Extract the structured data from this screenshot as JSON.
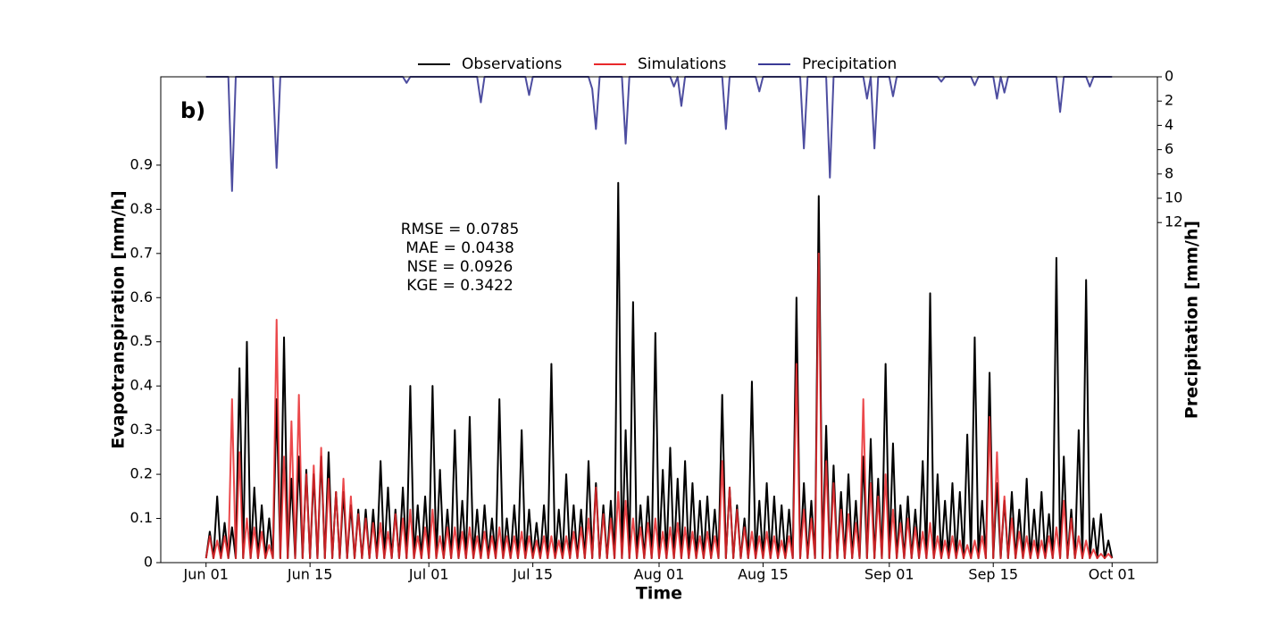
{
  "chart_data": {
    "type": "line",
    "panel_label": "b)",
    "xlabel": "Time",
    "ylabel": "Evapotranspiration [mm/h]",
    "y2label": "Precipitation [mm/h]",
    "annotations": [
      "RMSE = 0.0785",
      "MAE = 0.0438",
      "NSE = 0.0926",
      "KGE = 0.3422"
    ],
    "xlim": [
      -6.1,
      128.1
    ],
    "xticks": [
      {
        "value": 0,
        "label": "Jun 01"
      },
      {
        "value": 14,
        "label": "Jun 15"
      },
      {
        "value": 30,
        "label": "Jul 01"
      },
      {
        "value": 44,
        "label": "Jul 15"
      },
      {
        "value": 61,
        "label": "Aug 01"
      },
      {
        "value": 75,
        "label": "Aug 15"
      },
      {
        "value": 92,
        "label": "Sep 01"
      },
      {
        "value": 106,
        "label": "Sep 15"
      },
      {
        "value": 122,
        "label": "Oct 01"
      }
    ],
    "ylim": [
      0,
      1.1
    ],
    "yticks": [
      0,
      0.1,
      0.2,
      0.3,
      0.4,
      0.5,
      0.6,
      0.7,
      0.8,
      0.9
    ],
    "y2lim": [
      0,
      40
    ],
    "y2ticks": [
      0,
      2,
      4,
      6,
      8,
      10,
      12
    ],
    "y2_inverted": true,
    "legend": "top",
    "x": [
      0,
      0.5,
      1,
      1.5,
      2,
      2.5,
      3,
      3.5,
      4,
      4.5,
      5,
      5.5,
      6,
      6.5,
      7,
      7.5,
      8,
      8.5,
      9,
      9.5,
      10,
      10.5,
      11,
      11.5,
      12,
      12.5,
      13,
      13.5,
      14,
      14.5,
      15,
      15.5,
      16,
      16.5,
      17,
      17.5,
      18,
      18.5,
      19,
      19.5,
      20,
      20.5,
      21,
      21.5,
      22,
      22.5,
      23,
      23.5,
      24,
      24.5,
      25,
      25.5,
      26,
      26.5,
      27,
      27.5,
      28,
      28.5,
      29,
      29.5,
      30,
      30.5,
      31,
      31.5,
      32,
      32.5,
      33,
      33.5,
      34,
      34.5,
      35,
      35.5,
      36,
      36.5,
      37,
      37.5,
      38,
      38.5,
      39,
      39.5,
      40,
      40.5,
      41,
      41.5,
      42,
      42.5,
      43,
      43.5,
      44,
      44.5,
      45,
      45.5,
      46,
      46.5,
      47,
      47.5,
      48,
      48.5,
      49,
      49.5,
      50,
      50.5,
      51,
      51.5,
      52,
      52.5,
      53,
      53.5,
      54,
      54.5,
      55,
      55.5,
      56,
      56.5,
      57,
      57.5,
      58,
      58.5,
      59,
      59.5,
      60,
      60.5,
      61,
      61.5,
      62,
      62.5,
      63,
      63.5,
      64,
      64.5,
      65,
      65.5,
      66,
      66.5,
      67,
      67.5,
      68,
      68.5,
      69,
      69.5,
      70,
      70.5,
      71,
      71.5,
      72,
      72.5,
      73,
      73.5,
      74,
      74.5,
      75,
      75.5,
      76,
      76.5,
      77,
      77.5,
      78,
      78.5,
      79,
      79.5,
      80,
      80.5,
      81,
      81.5,
      82,
      82.5,
      83,
      83.5,
      84,
      84.5,
      85,
      85.5,
      86,
      86.5,
      87,
      87.5,
      88,
      88.5,
      89,
      89.5,
      90,
      90.5,
      91,
      91.5,
      92,
      92.5,
      93,
      93.5,
      94,
      94.5,
      95,
      95.5,
      96,
      96.5,
      97,
      97.5,
      98,
      98.5,
      99,
      99.5,
      100,
      100.5,
      101,
      101.5,
      102,
      102.5,
      103,
      103.5,
      104,
      104.5,
      105,
      105.5,
      106,
      106.5,
      107,
      107.5,
      108,
      108.5,
      109,
      109.5,
      110,
      110.5,
      111,
      111.5,
      112,
      112.5,
      113,
      113.5,
      114,
      114.5,
      115,
      115.5,
      116,
      116.5,
      117,
      117.5,
      118,
      118.5,
      119,
      119.5,
      120,
      120.5,
      121,
      121.5,
      122
    ],
    "series": [
      {
        "name": "Observations",
        "color": "#000000",
        "values": [
          0.01,
          0.07,
          0.01,
          0.15,
          0.01,
          0.09,
          0.01,
          0.08,
          0.01,
          0.44,
          0.01,
          0.5,
          0.01,
          0.17,
          0.01,
          0.13,
          0.01,
          0.1,
          0.01,
          0.37,
          0.01,
          0.51,
          0.01,
          0.19,
          0.01,
          0.24,
          0.01,
          0.21,
          0.01,
          0.2,
          0.01,
          0.24,
          0.01,
          0.25,
          0.01,
          0.16,
          0.01,
          0.16,
          0.01,
          0.13,
          0.01,
          0.12,
          0.01,
          0.12,
          0.01,
          0.12,
          0.01,
          0.23,
          0.01,
          0.17,
          0.01,
          0.12,
          0.01,
          0.17,
          0.01,
          0.4,
          0.01,
          0.13,
          0.01,
          0.15,
          0.01,
          0.4,
          0.01,
          0.21,
          0.01,
          0.12,
          0.01,
          0.3,
          0.01,
          0.14,
          0.01,
          0.33,
          0.01,
          0.12,
          0.01,
          0.13,
          0.01,
          0.1,
          0.01,
          0.37,
          0.01,
          0.1,
          0.01,
          0.13,
          0.01,
          0.3,
          0.01,
          0.12,
          0.01,
          0.09,
          0.01,
          0.13,
          0.01,
          0.45,
          0.01,
          0.12,
          0.01,
          0.2,
          0.01,
          0.13,
          0.01,
          0.12,
          0.01,
          0.23,
          0.01,
          0.18,
          0.01,
          0.13,
          0.01,
          0.14,
          0.01,
          0.86,
          0.01,
          0.3,
          0.01,
          0.59,
          0.01,
          0.13,
          0.01,
          0.15,
          0.01,
          0.52,
          0.01,
          0.21,
          0.01,
          0.26,
          0.01,
          0.19,
          0.01,
          0.23,
          0.01,
          0.18,
          0.01,
          0.14,
          0.01,
          0.15,
          0.01,
          0.12,
          0.01,
          0.38,
          0.01,
          0.17,
          0.01,
          0.13,
          0.01,
          0.1,
          0.01,
          0.41,
          0.01,
          0.14,
          0.01,
          0.18,
          0.01,
          0.15,
          0.01,
          0.13,
          0.01,
          0.12,
          0.01,
          0.6,
          0.01,
          0.18,
          0.01,
          0.14,
          0.01,
          0.83,
          0.01,
          0.31,
          0.01,
          0.22,
          0.01,
          0.16,
          0.01,
          0.2,
          0.01,
          0.14,
          0.01,
          0.24,
          0.01,
          0.28,
          0.01,
          0.19,
          0.01,
          0.45,
          0.01,
          0.27,
          0.01,
          0.13,
          0.01,
          0.15,
          0.01,
          0.12,
          0.01,
          0.23,
          0.01,
          0.61,
          0.01,
          0.2,
          0.01,
          0.14,
          0.01,
          0.18,
          0.01,
          0.16,
          0.01,
          0.29,
          0.01,
          0.51,
          0.01,
          0.14,
          0.01,
          0.43,
          0.01,
          0.18,
          0.01,
          0.14,
          0.01,
          0.16,
          0.01,
          0.12,
          0.01,
          0.19,
          0.01,
          0.12,
          0.01,
          0.16,
          0.01,
          0.11,
          0.01,
          0.69,
          0.01,
          0.24,
          0.01,
          0.12,
          0.01,
          0.3,
          0.01,
          0.64,
          0.01,
          0.1,
          0.01,
          0.11,
          0.01,
          0.05,
          0.01
        ]
      },
      {
        "name": "Simulations",
        "color": "#e8282b",
        "values": [
          0.01,
          0.06,
          0.01,
          0.05,
          0.01,
          0.06,
          0.01,
          0.37,
          0.01,
          0.25,
          0.01,
          0.1,
          0.01,
          0.08,
          0.01,
          0.07,
          0.01,
          0.04,
          0.01,
          0.55,
          0.01,
          0.24,
          0.01,
          0.32,
          0.01,
          0.38,
          0.01,
          0.2,
          0.01,
          0.22,
          0.01,
          0.26,
          0.01,
          0.19,
          0.01,
          0.16,
          0.01,
          0.19,
          0.01,
          0.15,
          0.01,
          0.11,
          0.01,
          0.1,
          0.01,
          0.09,
          0.01,
          0.09,
          0.01,
          0.07,
          0.01,
          0.11,
          0.01,
          0.1,
          0.01,
          0.12,
          0.01,
          0.06,
          0.01,
          0.08,
          0.01,
          0.12,
          0.01,
          0.06,
          0.01,
          0.08,
          0.01,
          0.08,
          0.01,
          0.07,
          0.01,
          0.08,
          0.01,
          0.06,
          0.01,
          0.07,
          0.01,
          0.06,
          0.01,
          0.08,
          0.01,
          0.06,
          0.01,
          0.06,
          0.01,
          0.07,
          0.01,
          0.06,
          0.01,
          0.05,
          0.01,
          0.06,
          0.01,
          0.06,
          0.01,
          0.05,
          0.01,
          0.06,
          0.01,
          0.07,
          0.01,
          0.08,
          0.01,
          0.1,
          0.01,
          0.17,
          0.01,
          0.11,
          0.01,
          0.1,
          0.01,
          0.16,
          0.01,
          0.14,
          0.01,
          0.1,
          0.01,
          0.08,
          0.01,
          0.09,
          0.01,
          0.1,
          0.01,
          0.07,
          0.01,
          0.08,
          0.01,
          0.09,
          0.01,
          0.08,
          0.01,
          0.07,
          0.01,
          0.06,
          0.01,
          0.07,
          0.01,
          0.06,
          0.01,
          0.23,
          0.01,
          0.17,
          0.01,
          0.12,
          0.01,
          0.08,
          0.01,
          0.07,
          0.01,
          0.06,
          0.01,
          0.07,
          0.01,
          0.06,
          0.01,
          0.05,
          0.01,
          0.06,
          0.01,
          0.45,
          0.01,
          0.12,
          0.01,
          0.1,
          0.01,
          0.7,
          0.01,
          0.23,
          0.01,
          0.18,
          0.01,
          0.12,
          0.01,
          0.11,
          0.01,
          0.09,
          0.01,
          0.37,
          0.01,
          0.18,
          0.01,
          0.15,
          0.01,
          0.2,
          0.01,
          0.12,
          0.01,
          0.09,
          0.01,
          0.1,
          0.01,
          0.08,
          0.01,
          0.07,
          0.01,
          0.09,
          0.01,
          0.06,
          0.01,
          0.05,
          0.01,
          0.06,
          0.01,
          0.05,
          0.01,
          0.04,
          0.01,
          0.05,
          0.01,
          0.06,
          0.01,
          0.33,
          0.01,
          0.25,
          0.01,
          0.15,
          0.01,
          0.1,
          0.01,
          0.07,
          0.01,
          0.06,
          0.01,
          0.05,
          0.01,
          0.05,
          0.01,
          0.06,
          0.01,
          0.08,
          0.01,
          0.14,
          0.01,
          0.1,
          0.01,
          0.06,
          0.01,
          0.05,
          0.01,
          0.03,
          0.01,
          0.02,
          0.01,
          0.02,
          0.01
        ]
      },
      {
        "name": "Precipitation",
        "color": "#3a3a96",
        "axis": "y2",
        "values": [
          0,
          0,
          0,
          0,
          0,
          0,
          0,
          9.4,
          0,
          0,
          0,
          0,
          0,
          0,
          0,
          0,
          0,
          0,
          0,
          7.5,
          0,
          0,
          0,
          0,
          0,
          0,
          0,
          0,
          0,
          0,
          0,
          0,
          0,
          0,
          0,
          0,
          0,
          0,
          0,
          0,
          0,
          0,
          0,
          0,
          0,
          0,
          0,
          0,
          0,
          0,
          0,
          0,
          0,
          0,
          0.5,
          0,
          0,
          0,
          0,
          0,
          0,
          0,
          0,
          0,
          0,
          0,
          0,
          0,
          0,
          0,
          0,
          0,
          0,
          0,
          2.1,
          0,
          0,
          0,
          0,
          0,
          0,
          0,
          0,
          0,
          0,
          0,
          0,
          1.5,
          0,
          0,
          0,
          0,
          0,
          0,
          0,
          0,
          0,
          0,
          0,
          0,
          0,
          0,
          0,
          0,
          1.0,
          4.3,
          0,
          0,
          0,
          0,
          0,
          0,
          0,
          5.5,
          0,
          0,
          0,
          0,
          0,
          0,
          0,
          0,
          0,
          0,
          0,
          0,
          0.8,
          0,
          2.4,
          0,
          0,
          0,
          0,
          0,
          0,
          0,
          0,
          0,
          0,
          0,
          4.3,
          0,
          0,
          0,
          0,
          0,
          0,
          0,
          0,
          1.2,
          0,
          0,
          0,
          0,
          0,
          0,
          0,
          0,
          0,
          0,
          0,
          5.9,
          0,
          0,
          0,
          0,
          0,
          0,
          8.3,
          0,
          0,
          0,
          0,
          0,
          0,
          0,
          0,
          0,
          1.8,
          0,
          5.9,
          0,
          0,
          0,
          0,
          1.6,
          0,
          0,
          0,
          0,
          0,
          0,
          0,
          0,
          0,
          0,
          0,
          0,
          0.4,
          0,
          0,
          0,
          0,
          0,
          0,
          0,
          0,
          0.7,
          0,
          0,
          0,
          0,
          0,
          1.8,
          0,
          1.3,
          0,
          0,
          0,
          0,
          0,
          0,
          0,
          0,
          0,
          0,
          0,
          0,
          0,
          0,
          2.9,
          0,
          0,
          0,
          0,
          0,
          0,
          0,
          0.8,
          0,
          0,
          0,
          0,
          0,
          0
        ]
      }
    ]
  }
}
